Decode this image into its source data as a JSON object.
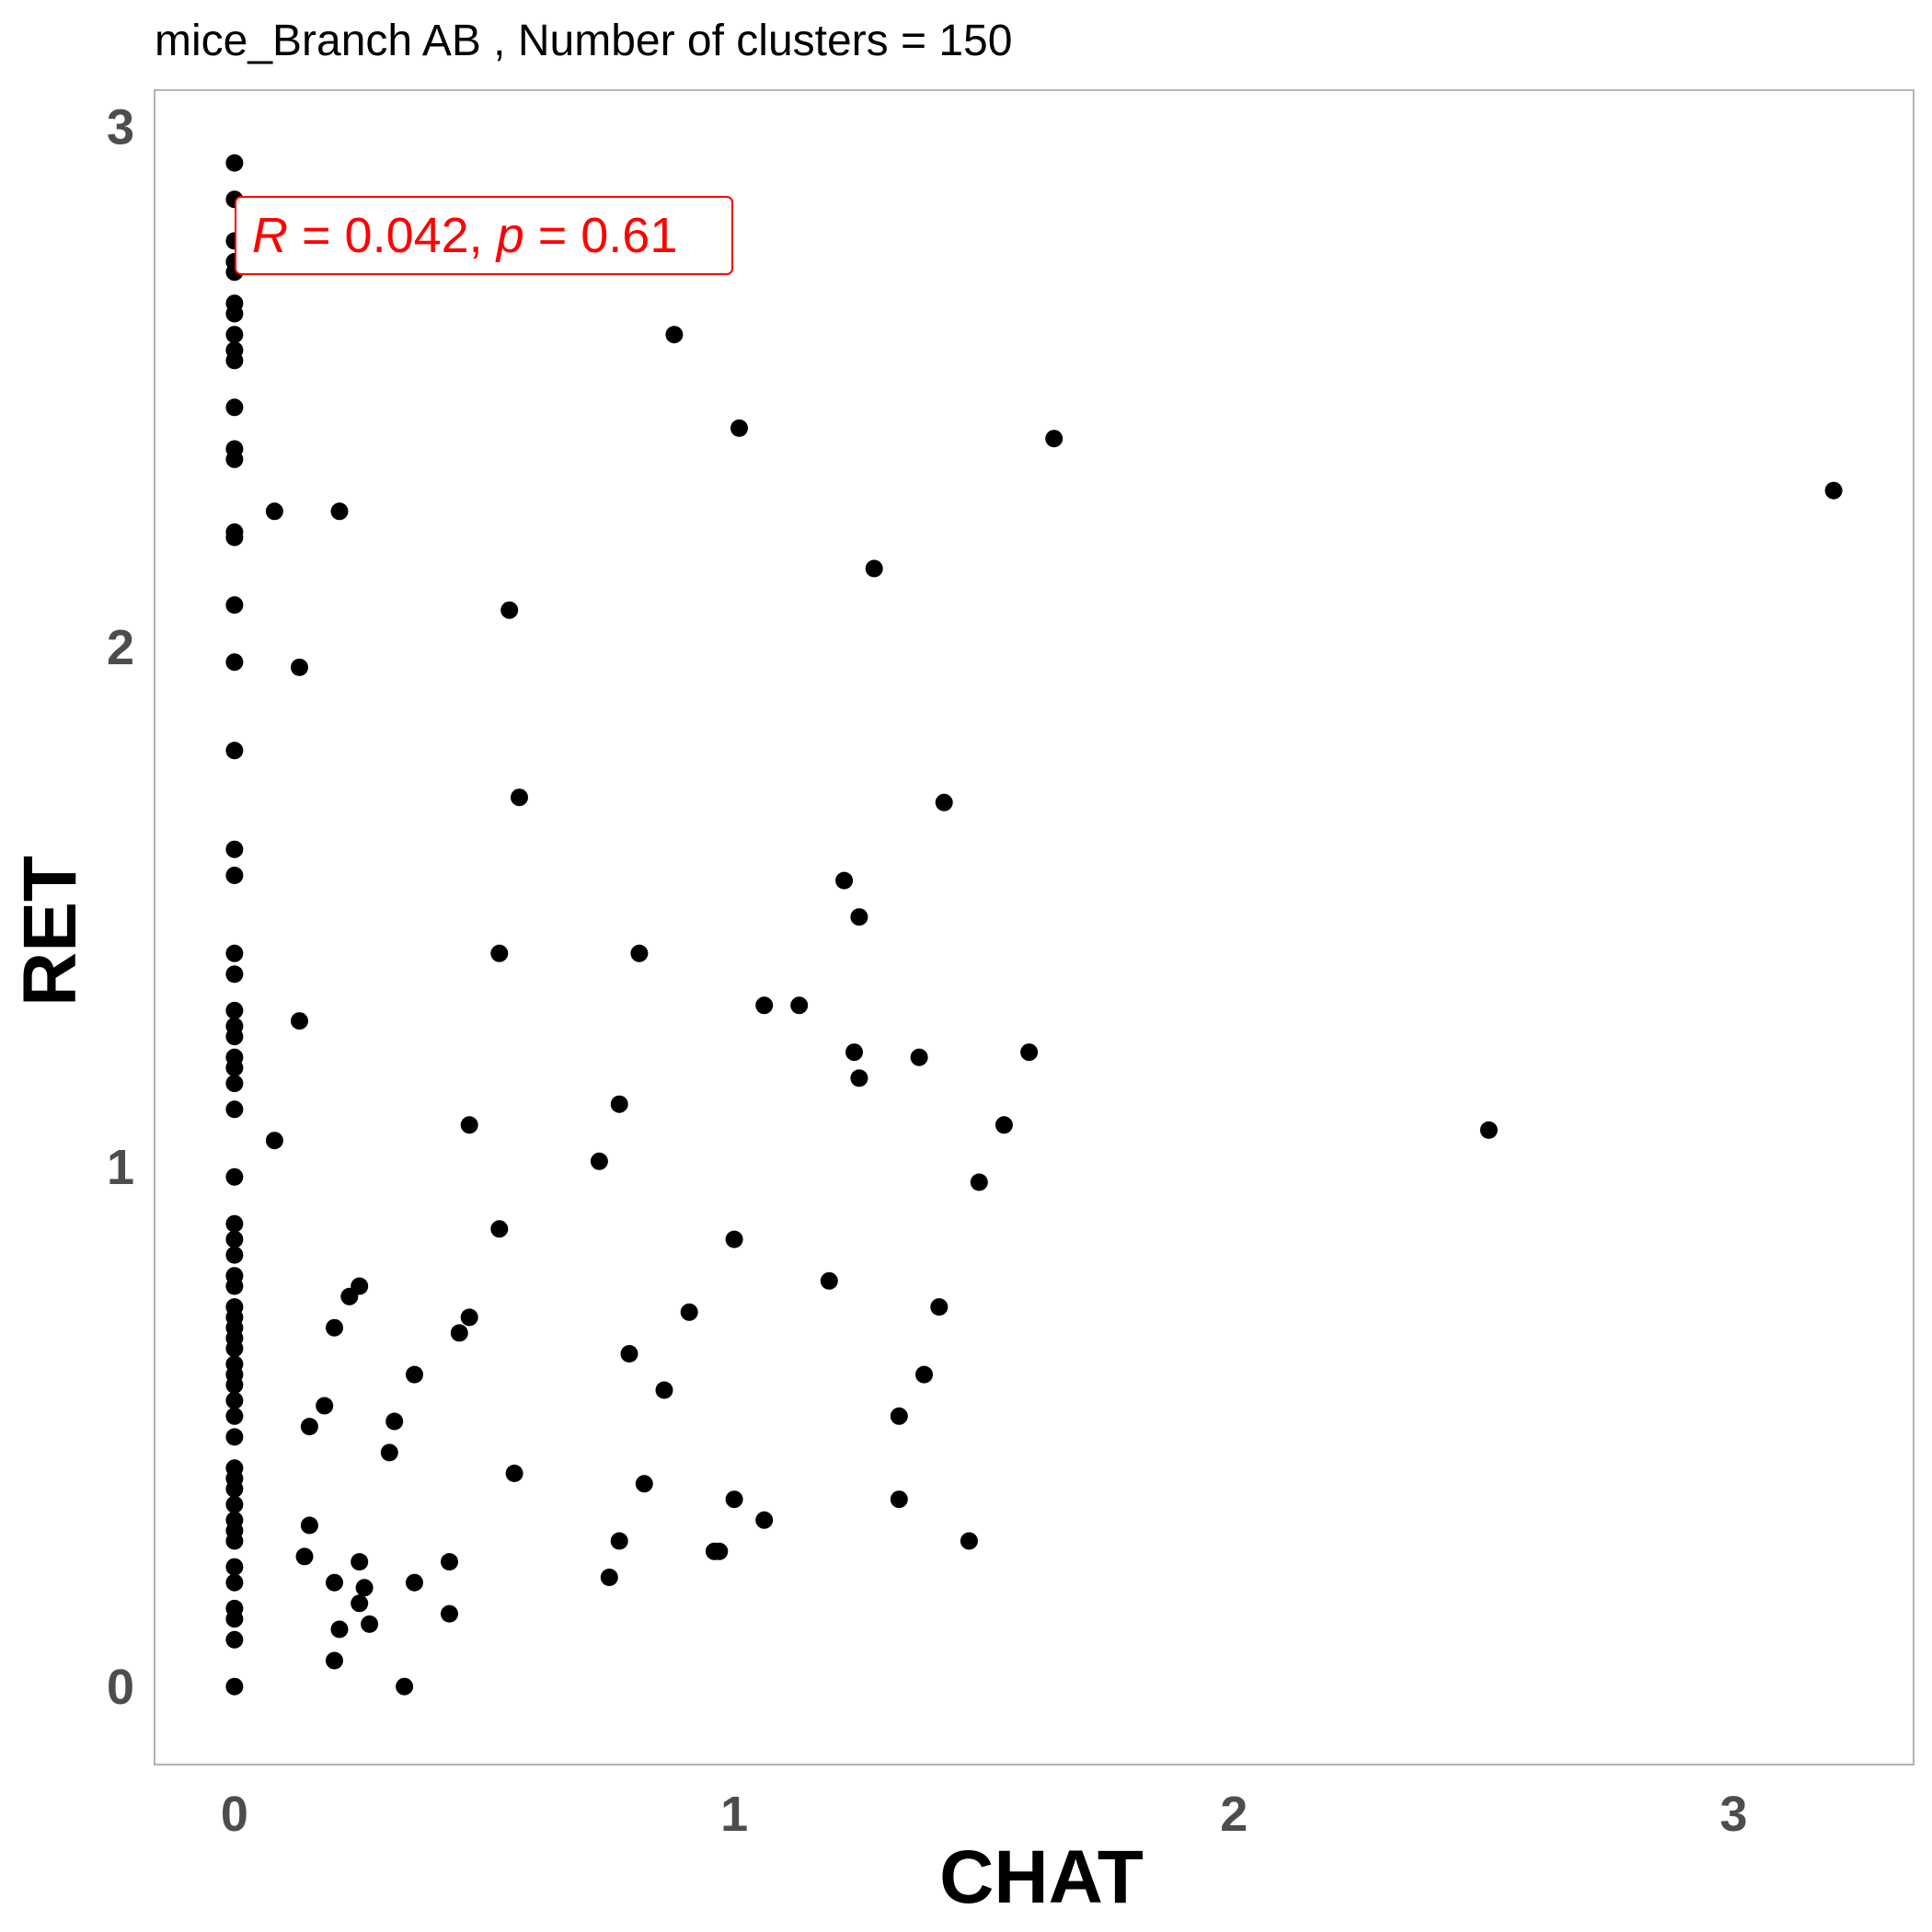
{
  "chart_data": {
    "type": "scatter",
    "title": "mice_Branch AB , Number of clusters =  150",
    "xlabel": "CHAT",
    "ylabel": "RET",
    "xlim": [
      -0.16,
      3.36
    ],
    "ylim": [
      -0.15,
      3.07
    ],
    "xticks": [
      "0",
      "1",
      "2",
      "3"
    ],
    "yticks": [
      "0",
      "1",
      "2",
      "3"
    ],
    "grid": false,
    "point_color": "#000000",
    "annotation": {
      "r_symbol": "R",
      "r_text": " = 0.042, ",
      "p_symbol": "p",
      "p_text": " = 0.61",
      "color": "#ff0000"
    },
    "points": [
      [
        0,
        2.93
      ],
      [
        0,
        2.86
      ],
      [
        0,
        2.78
      ],
      [
        0,
        2.74
      ],
      [
        0,
        2.72
      ],
      [
        0,
        2.66
      ],
      [
        0,
        2.64
      ],
      [
        0,
        2.6
      ],
      [
        0,
        2.57
      ],
      [
        0,
        2.55
      ],
      [
        0,
        2.46
      ],
      [
        0,
        2.38
      ],
      [
        0,
        2.36
      ],
      [
        0,
        2.22
      ],
      [
        0,
        2.21
      ],
      [
        0,
        2.08
      ],
      [
        0,
        1.97
      ],
      [
        0,
        1.8
      ],
      [
        0,
        1.61
      ],
      [
        0,
        1.56
      ],
      [
        0,
        1.41
      ],
      [
        0,
        1.37
      ],
      [
        0,
        1.3
      ],
      [
        0,
        1.27
      ],
      [
        0,
        1.25
      ],
      [
        0,
        1.21
      ],
      [
        0,
        1.19
      ],
      [
        0,
        1.16
      ],
      [
        0,
        1.11
      ],
      [
        0,
        0.98
      ],
      [
        0,
        0.89
      ],
      [
        0,
        0.86
      ],
      [
        0,
        0.83
      ],
      [
        0,
        0.79
      ],
      [
        0,
        0.77
      ],
      [
        0,
        0.73
      ],
      [
        0,
        0.71
      ],
      [
        0,
        0.69
      ],
      [
        0,
        0.67
      ],
      [
        0,
        0.65
      ],
      [
        0,
        0.62
      ],
      [
        0,
        0.6
      ],
      [
        0,
        0.58
      ],
      [
        0,
        0.55
      ],
      [
        0,
        0.52
      ],
      [
        0,
        0.48
      ],
      [
        0,
        0.42
      ],
      [
        0,
        0.4
      ],
      [
        0,
        0.38
      ],
      [
        0,
        0.35
      ],
      [
        0,
        0.32
      ],
      [
        0,
        0.3
      ],
      [
        0,
        0.28
      ],
      [
        0,
        0.23
      ],
      [
        0,
        0.2
      ],
      [
        0,
        0.15
      ],
      [
        0,
        0.13
      ],
      [
        0,
        0.09
      ],
      [
        0,
        0.0
      ],
      [
        0.08,
        2.26
      ],
      [
        0.21,
        2.26
      ],
      [
        0.13,
        1.96
      ],
      [
        0.13,
        1.28
      ],
      [
        0.08,
        1.05
      ],
      [
        0.2,
        0.69
      ],
      [
        0.23,
        0.75
      ],
      [
        0.25,
        0.77
      ],
      [
        0.18,
        0.54
      ],
      [
        0.15,
        0.5
      ],
      [
        0.15,
        0.31
      ],
      [
        0.14,
        0.25
      ],
      [
        0.2,
        0.2
      ],
      [
        0.25,
        0.24
      ],
      [
        0.26,
        0.19
      ],
      [
        0.25,
        0.16
      ],
      [
        0.27,
        0.12
      ],
      [
        0.21,
        0.11
      ],
      [
        0.2,
        0.05
      ],
      [
        0.34,
        0.0
      ],
      [
        0.36,
        0.2
      ],
      [
        0.43,
        0.24
      ],
      [
        0.43,
        0.14
      ],
      [
        0.31,
        0.45
      ],
      [
        0.32,
        0.51
      ],
      [
        0.36,
        0.6
      ],
      [
        0.45,
        0.68
      ],
      [
        0.47,
        0.71
      ],
      [
        0.47,
        1.08
      ],
      [
        0.53,
        0.88
      ],
      [
        0.53,
        1.41
      ],
      [
        0.55,
        2.07
      ],
      [
        0.57,
        1.71
      ],
      [
        0.56,
        0.41
      ],
      [
        0.73,
        1.01
      ],
      [
        0.75,
        0.21
      ],
      [
        0.77,
        0.28
      ],
      [
        0.77,
        1.12
      ],
      [
        0.79,
        0.64
      ],
      [
        0.81,
        1.41
      ],
      [
        0.82,
        0.39
      ],
      [
        0.86,
        0.57
      ],
      [
        0.88,
        2.6
      ],
      [
        0.91,
        0.72
      ],
      [
        0.96,
        0.26
      ],
      [
        0.97,
        0.26
      ],
      [
        1.0,
        0.36
      ],
      [
        1.0,
        0.86
      ],
      [
        1.01,
        2.42
      ],
      [
        1.06,
        0.32
      ],
      [
        1.06,
        1.31
      ],
      [
        1.13,
        1.31
      ],
      [
        1.19,
        0.78
      ],
      [
        1.22,
        1.55
      ],
      [
        1.24,
        1.22
      ],
      [
        1.25,
        1.48
      ],
      [
        1.25,
        1.17
      ],
      [
        1.28,
        2.15
      ],
      [
        1.33,
        0.52
      ],
      [
        1.33,
        0.36
      ],
      [
        1.37,
        1.21
      ],
      [
        1.38,
        0.6
      ],
      [
        1.41,
        0.73
      ],
      [
        1.42,
        1.7
      ],
      [
        1.47,
        0.28
      ],
      [
        1.49,
        0.97
      ],
      [
        1.54,
        1.08
      ],
      [
        1.59,
        1.22
      ],
      [
        1.64,
        2.4
      ],
      [
        2.51,
        1.07
      ],
      [
        3.2,
        2.3
      ]
    ]
  }
}
